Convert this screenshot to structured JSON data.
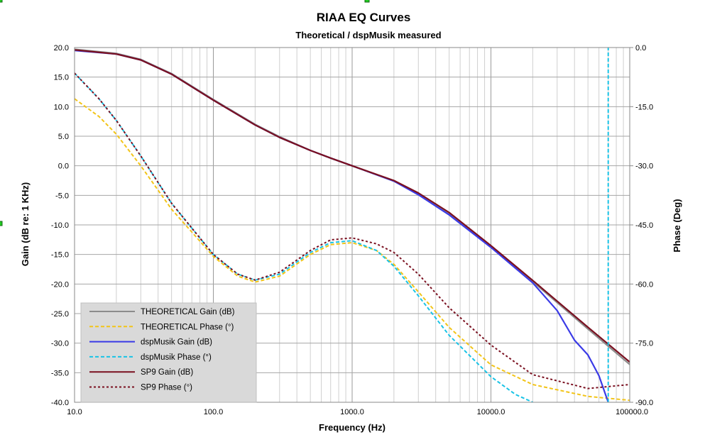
{
  "chart_data": {
    "type": "line",
    "title": "RIAA EQ Curves",
    "subtitle": "Theoretical / dspMusik measured",
    "xlabel": "Frequency (Hz)",
    "ylabel_left": "Gain (dB re: 1 KHz)",
    "ylabel_right": "Phase (Deg)",
    "xscale": "log",
    "xlim": [
      10,
      100000
    ],
    "ylim_left": [
      -40,
      20
    ],
    "ylim_right": [
      -90,
      0
    ],
    "x_ticks": [
      "10.0",
      "100.0",
      "1000.0",
      "10000.0",
      "100000.0"
    ],
    "y_ticks_left": [
      "20.0",
      "15.0",
      "10.0",
      "5.0",
      "0.0",
      "-5.0",
      "-10.0",
      "-15.0",
      "-20.0",
      "-25.0",
      "-30.0",
      "-35.0",
      "-40.0"
    ],
    "y_ticks_right": [
      "0.0",
      "-15.0",
      "-30.0",
      "-45.0",
      "-60.0",
      "-75.0",
      "-90.0"
    ],
    "grid": true,
    "legend_position": "bottom-left",
    "series": [
      {
        "name": "THEORETICAL Gain (dB)",
        "axis": "left",
        "style": "solid",
        "color": "#8c8c8c",
        "x": [
          10,
          20,
          30,
          50,
          100,
          200,
          300,
          500,
          700,
          1000,
          2000,
          3000,
          5000,
          10000,
          20000,
          50000,
          100000
        ],
        "y": [
          19.7,
          19.0,
          18.0,
          15.6,
          11.2,
          7.0,
          4.9,
          2.6,
          1.3,
          0.0,
          -2.6,
          -4.8,
          -8.2,
          -13.7,
          -19.6,
          -27.6,
          -33.6
        ]
      },
      {
        "name": "THEORETICAL Phase (°)",
        "axis": "right",
        "style": "dashed",
        "color": "#f2c418",
        "x": [
          10,
          15,
          20,
          30,
          50,
          100,
          150,
          200,
          300,
          500,
          700,
          1000,
          1500,
          2000,
          3000,
          5000,
          10000,
          20000,
          50000,
          100000
        ],
        "y": [
          -13.0,
          -17.5,
          -22.0,
          -30.0,
          -41.0,
          -53.0,
          -58.0,
          -59.5,
          -58.0,
          -52.5,
          -50.0,
          -49.5,
          -51.5,
          -55.0,
          -62.0,
          -71.0,
          -80.5,
          -85.5,
          -88.5,
          -89.5
        ]
      },
      {
        "name": "dspMusik Gain (dB)",
        "axis": "left",
        "style": "solid",
        "color": "#3a3ae6",
        "x": [
          10,
          20,
          30,
          50,
          100,
          200,
          300,
          500,
          700,
          1000,
          2000,
          3000,
          5000,
          10000,
          20000,
          30000,
          40000,
          50000,
          60000,
          70000
        ],
        "y": [
          19.5,
          18.9,
          17.9,
          15.5,
          11.1,
          6.9,
          4.8,
          2.6,
          1.3,
          0.0,
          -2.6,
          -4.9,
          -8.3,
          -13.8,
          -19.8,
          -24.5,
          -29.5,
          -32.0,
          -35.5,
          -40.0
        ]
      },
      {
        "name": "dspMusik  Phase (°)",
        "axis": "right",
        "style": "dashed",
        "color": "#19c3e6",
        "x": [
          10,
          15,
          20,
          30,
          50,
          100,
          150,
          200,
          300,
          500,
          700,
          1000,
          1500,
          2000,
          3000,
          5000,
          10000,
          15000,
          20000
        ],
        "y": [
          -6.5,
          -13.0,
          -18.5,
          -27.5,
          -39.5,
          -52.5,
          -57.5,
          -59.0,
          -57.5,
          -52.0,
          -49.5,
          -49.0,
          -51.5,
          -55.5,
          -63.0,
          -73.0,
          -83.5,
          -88.0,
          -90.0
        ]
      },
      {
        "name": "SP9 Gain (dB)",
        "axis": "left",
        "style": "solid",
        "color": "#7a1020",
        "x": [
          10,
          20,
          30,
          50,
          100,
          200,
          300,
          500,
          700,
          1000,
          2000,
          3000,
          5000,
          10000,
          20000,
          50000,
          100000
        ],
        "y": [
          19.6,
          18.9,
          17.9,
          15.5,
          11.1,
          6.9,
          4.8,
          2.6,
          1.3,
          0.0,
          -2.5,
          -4.6,
          -7.9,
          -13.5,
          -19.4,
          -27.3,
          -33.2
        ]
      },
      {
        "name": " SP9 Phase (°)",
        "axis": "right",
        "style": "dotted",
        "color": "#7a1020",
        "x": [
          10,
          15,
          20,
          30,
          50,
          100,
          150,
          200,
          300,
          500,
          700,
          1000,
          1500,
          2000,
          3000,
          5000,
          10000,
          20000,
          50000,
          100000
        ],
        "y": [
          -6.5,
          -13.0,
          -18.5,
          -27.5,
          -39.5,
          -52.5,
          -57.5,
          -59.0,
          -57.0,
          -51.5,
          -48.8,
          -48.3,
          -49.8,
          -52.0,
          -57.5,
          -66.0,
          -75.5,
          -83.0,
          -86.5,
          -85.5
        ]
      },
      {
        "name": "",
        "axis": "right",
        "style": "dashed",
        "color": "#19c3e6",
        "legend": false,
        "x": [
          70000,
          70000
        ],
        "y": [
          -90.0,
          0.0
        ]
      }
    ]
  }
}
